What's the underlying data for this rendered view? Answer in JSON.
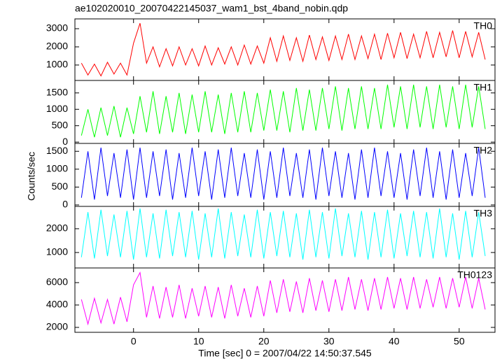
{
  "chart_data": [
    {
      "type": "line",
      "title": "ae102020010_20070422145037_wam1_bst_4band_nobin.qdp",
      "x": [
        -8,
        -7,
        -6,
        -5,
        -4,
        -3,
        -2,
        -1,
        0,
        1,
        2,
        3,
        4,
        5,
        6,
        7,
        8,
        9,
        10,
        11,
        12,
        13,
        14,
        15,
        16,
        17,
        18,
        19,
        20,
        21,
        22,
        23,
        24,
        25,
        26,
        27,
        28,
        29,
        30,
        31,
        32,
        33,
        34,
        35,
        36,
        37,
        38,
        39,
        40,
        41,
        42,
        43,
        44,
        45,
        46,
        47,
        48,
        49,
        50,
        51,
        52,
        53,
        54
      ],
      "xlim": [
        -9,
        55.5
      ],
      "xticks": [
        0,
        10,
        20,
        30,
        40,
        50
      ],
      "ylim": [
        150,
        3540
      ],
      "yticks": [
        1000,
        2000,
        3000
      ],
      "series": [
        {
          "name": "TH0",
          "color": "#ff0000",
          "values": [
            1100,
            450,
            1050,
            400,
            1150,
            500,
            1100,
            450,
            2200,
            3300,
            1100,
            2000,
            900,
            1900,
            950,
            2000,
            1000,
            1900,
            950,
            2050,
            1000,
            1950,
            1050,
            2000,
            1000,
            2100,
            1050,
            2050,
            1100,
            2500,
            1200,
            2600,
            1250,
            2500,
            1200,
            2650,
            1300,
            2550,
            1250,
            2600,
            1300,
            2700,
            1300,
            2600,
            1350,
            2700,
            1300,
            2750,
            1400,
            2800,
            1350,
            2700,
            1400,
            2850,
            1400,
            2800,
            1450,
            2900,
            1400,
            2850,
            1450,
            2800,
            1300
          ]
        }
      ]
    },
    {
      "type": "line",
      "x": [
        -8,
        -7,
        -6,
        -5,
        -4,
        -3,
        -2,
        -1,
        0,
        1,
        2,
        3,
        4,
        5,
        6,
        7,
        8,
        9,
        10,
        11,
        12,
        13,
        14,
        15,
        16,
        17,
        18,
        19,
        20,
        21,
        22,
        23,
        24,
        25,
        26,
        27,
        28,
        29,
        30,
        31,
        32,
        33,
        34,
        35,
        36,
        37,
        38,
        39,
        40,
        41,
        42,
        43,
        44,
        45,
        46,
        47,
        48,
        49,
        50,
        51,
        52,
        53,
        54
      ],
      "xlim": [
        -9,
        55.5
      ],
      "xticks": [
        0,
        10,
        20,
        30,
        40,
        50
      ],
      "ylim": [
        -40,
        1880
      ],
      "yticks": [
        0,
        500,
        1000,
        1500
      ],
      "series": [
        {
          "name": "TH1",
          "color": "#00ff00",
          "values": [
            200,
            1000,
            150,
            1050,
            200,
            1100,
            150,
            1050,
            250,
            1400,
            300,
            1550,
            250,
            1400,
            300,
            1500,
            250,
            1450,
            300,
            1550,
            300,
            1450,
            250,
            1500,
            300,
            1550,
            300,
            1500,
            350,
            1600,
            350,
            1550,
            300,
            1650,
            350,
            1600,
            350,
            1650,
            400,
            1700,
            350,
            1650,
            400,
            1700,
            400,
            1650,
            400,
            1750,
            450,
            1700,
            400,
            1750,
            450,
            1700,
            400,
            1750,
            450,
            1700,
            400,
            1750,
            450,
            1700,
            400
          ]
        }
      ]
    },
    {
      "type": "line",
      "ylabel": "Counts/sec",
      "x": [
        -8,
        -7,
        -6,
        -5,
        -4,
        -3,
        -2,
        -1,
        0,
        1,
        2,
        3,
        4,
        5,
        6,
        7,
        8,
        9,
        10,
        11,
        12,
        13,
        14,
        15,
        16,
        17,
        18,
        19,
        20,
        21,
        22,
        23,
        24,
        25,
        26,
        27,
        28,
        29,
        30,
        31,
        32,
        33,
        34,
        35,
        36,
        37,
        38,
        39,
        40,
        41,
        42,
        43,
        44,
        45,
        46,
        47,
        48,
        49,
        50,
        51,
        52,
        53,
        54
      ],
      "xlim": [
        -9,
        55.5
      ],
      "xticks": [
        0,
        10,
        20,
        30,
        40,
        50
      ],
      "ylim": [
        -40,
        1720
      ],
      "yticks": [
        0,
        500,
        1000,
        1500
      ],
      "series": [
        {
          "name": "TH2",
          "color": "#0000ff",
          "values": [
            200,
            1500,
            150,
            1600,
            250,
            1450,
            200,
            1550,
            150,
            1600,
            200,
            1500,
            250,
            1550,
            150,
            1450,
            200,
            1600,
            250,
            1500,
            150,
            1550,
            200,
            1600,
            250,
            1450,
            200,
            1550,
            150,
            1500,
            200,
            1600,
            250,
            1450,
            200,
            1550,
            150,
            1600,
            250,
            1500,
            200,
            1450,
            150,
            1550,
            200,
            1600,
            250,
            1500,
            200,
            1450,
            150,
            1550,
            250,
            1600,
            200,
            1500,
            150,
            1550,
            200,
            1450,
            250,
            1600,
            200
          ]
        }
      ]
    },
    {
      "type": "line",
      "x": [
        -8,
        -7,
        -6,
        -5,
        -4,
        -3,
        -2,
        -1,
        0,
        1,
        2,
        3,
        4,
        5,
        6,
        7,
        8,
        9,
        10,
        11,
        12,
        13,
        14,
        15,
        16,
        17,
        18,
        19,
        20,
        21,
        22,
        23,
        24,
        25,
        26,
        27,
        28,
        29,
        30,
        31,
        32,
        33,
        34,
        35,
        36,
        37,
        38,
        39,
        40,
        41,
        42,
        43,
        44,
        45,
        46,
        47,
        48,
        49,
        50,
        51,
        52,
        53,
        54
      ],
      "xlim": [
        -9,
        55.5
      ],
      "xticks": [
        0,
        10,
        20,
        30,
        40,
        50
      ],
      "ylim": [
        350,
        2940
      ],
      "yticks": [
        1000,
        2000
      ],
      "series": [
        {
          "name": "TH3",
          "color": "#00ffff",
          "values": [
            800,
            2700,
            750,
            2800,
            850,
            2600,
            800,
            2750,
            700,
            2850,
            800,
            2650,
            750,
            2800,
            850,
            2700,
            800,
            2750,
            700,
            2650,
            800,
            2850,
            750,
            2700,
            850,
            2600,
            800,
            2800,
            750,
            2700,
            850,
            2750,
            800,
            2650,
            700,
            2800,
            800,
            2700,
            750,
            2850,
            850,
            2650,
            800,
            2750,
            700,
            2700,
            800,
            2800,
            750,
            2650,
            850,
            2750,
            800,
            2700,
            750,
            2850,
            800,
            2650,
            700,
            2750,
            800,
            2700,
            850
          ]
        }
      ]
    },
    {
      "type": "line",
      "xlabel": "Time [sec] 0 = 2007/04/22 14:50:37.545",
      "x": [
        -8,
        -7,
        -6,
        -5,
        -4,
        -3,
        -2,
        -1,
        0,
        1,
        2,
        3,
        4,
        5,
        6,
        7,
        8,
        9,
        10,
        11,
        12,
        13,
        14,
        15,
        16,
        17,
        18,
        19,
        20,
        21,
        22,
        23,
        24,
        25,
        26,
        27,
        28,
        29,
        30,
        31,
        32,
        33,
        34,
        35,
        36,
        37,
        38,
        39,
        40,
        41,
        42,
        43,
        44,
        45,
        46,
        47,
        48,
        49,
        50,
        51,
        52,
        53,
        54
      ],
      "xlim": [
        -9,
        55.5
      ],
      "xticks": [
        0,
        10,
        20,
        30,
        40,
        50
      ],
      "ylim": [
        1560,
        7310
      ],
      "yticks": [
        2000,
        4000,
        6000
      ],
      "series": [
        {
          "name": "TH0123",
          "color": "#ff00ff",
          "values": [
            4500,
            2300,
            4600,
            2400,
            4500,
            2300,
            4700,
            2500,
            5800,
            6900,
            2900,
            5700,
            2800,
            5600,
            2900,
            5800,
            2800,
            5500,
            3000,
            5700,
            2900,
            5600,
            2800,
            5800,
            3000,
            5500,
            2900,
            5700,
            3000,
            6200,
            3300,
            6300,
            3400,
            6100,
            3300,
            6400,
            3500,
            6200,
            3400,
            6300,
            3500,
            6500,
            3600,
            6300,
            3500,
            6400,
            3600,
            6500,
            3700,
            6400,
            3600,
            6500,
            3700,
            6300,
            3800,
            6500,
            3700,
            6400,
            3800,
            6500,
            3700,
            6400,
            3600
          ]
        }
      ]
    }
  ]
}
